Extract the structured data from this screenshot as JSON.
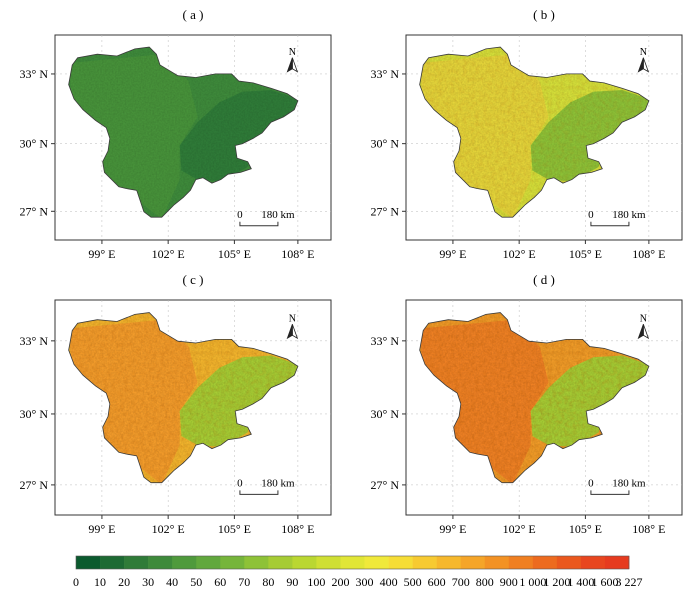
{
  "panels": [
    {
      "label": "( a )",
      "scheme": "a"
    },
    {
      "label": "( b )",
      "scheme": "b"
    },
    {
      "label": "( c )",
      "scheme": "c"
    },
    {
      "label": "( d )",
      "scheme": "d"
    }
  ],
  "axes": {
    "lon_labels": [
      "99° E",
      "102° E",
      "105° E",
      "108° E"
    ],
    "lat_labels": [
      "33° N",
      "30° N",
      "27° N"
    ]
  },
  "north_arrow": {
    "label": "N"
  },
  "scale_bar": {
    "zero": "0",
    "distance": "180 km"
  },
  "legend": {
    "colors": [
      "#0b5a2e",
      "#1d6a33",
      "#2f7b38",
      "#3e8a3b",
      "#4f9a3c",
      "#61a83d",
      "#76b53b",
      "#8ec237",
      "#a6cc34",
      "#bad731",
      "#cfdf33",
      "#e1e636",
      "#f0e93a",
      "#f6dd36",
      "#f7ca31",
      "#f6b82c",
      "#f5a528",
      "#f39224",
      "#f07f21",
      "#ed6b1f",
      "#ea581e",
      "#e8461f",
      "#e63b1f"
    ],
    "labels": [
      "0",
      "10",
      "20",
      "30",
      "40",
      "50",
      "60",
      "70",
      "80",
      "90",
      "100",
      "200",
      "300",
      "400",
      "500",
      "600",
      "700",
      "800",
      "900",
      "1 000",
      "1 200",
      "1 400",
      "1 600",
      "3 227"
    ]
  }
}
